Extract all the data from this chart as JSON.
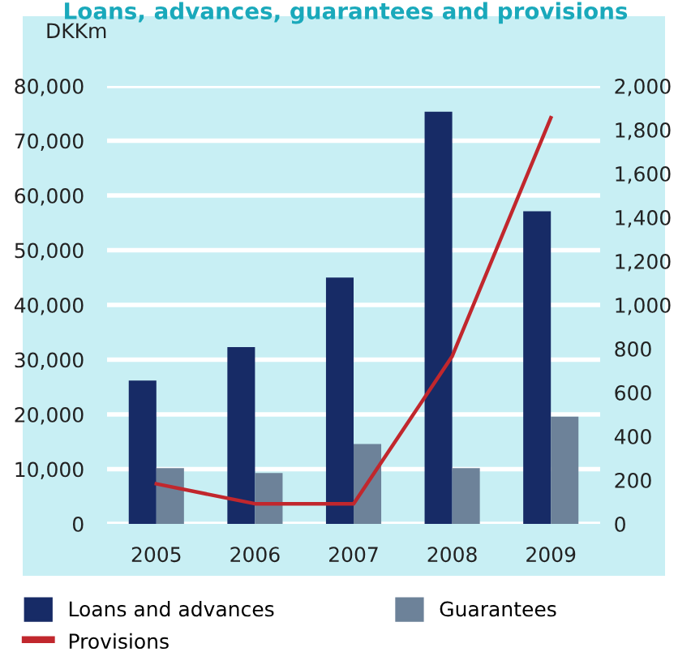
{
  "chart_data": {
    "type": "bar",
    "title": "Loans, advances, guarantees and provisions",
    "ylabel": "DKKm",
    "categories": [
      "2005",
      "2006",
      "2007",
      "2008",
      "2009"
    ],
    "series": [
      {
        "name": "Loans and advances",
        "color": "#172b66",
        "values": [
          26200,
          32300,
          45000,
          75300,
          57100
        ]
      },
      {
        "name": "Guarantees",
        "color": "#6d8299",
        "values": [
          10200,
          9300,
          14600,
          10200,
          19600
        ]
      },
      {
        "name": "Provisions",
        "color": "#c1272d",
        "type": "line",
        "axis": "y2",
        "values": [
          183,
          92,
          92,
          766,
          1855
        ]
      }
    ],
    "ylim": [
      0,
      80000
    ],
    "yticks": [
      {
        "value": 0,
        "label": "0"
      },
      {
        "value": 10000,
        "label": "10,000"
      },
      {
        "value": 20000,
        "label": "20,000"
      },
      {
        "value": 30000,
        "label": "30,000"
      },
      {
        "value": 40000,
        "label": "40,000"
      },
      {
        "value": 50000,
        "label": "50,000"
      },
      {
        "value": 60000,
        "label": "60,000"
      },
      {
        "value": 70000,
        "label": "70,000"
      },
      {
        "value": 80000,
        "label": "80,000"
      }
    ],
    "y2lim": [
      0,
      2000
    ],
    "y2ticks": [
      {
        "value": 0,
        "label": "0"
      },
      {
        "value": 200,
        "label": "200"
      },
      {
        "value": 400,
        "label": "400"
      },
      {
        "value": 600,
        "label": "600"
      },
      {
        "value": 800,
        "label": "800"
      },
      {
        "value": 1000,
        "label": "1,000"
      },
      {
        "value": 1200,
        "label": "1,200"
      },
      {
        "value": 1400,
        "label": "1,400"
      },
      {
        "value": 1600,
        "label": "1,600"
      },
      {
        "value": 1800,
        "label": "1,800"
      },
      {
        "value": 2000,
        "label": "2,000"
      }
    ],
    "grid": "y",
    "legend": "bottom"
  }
}
